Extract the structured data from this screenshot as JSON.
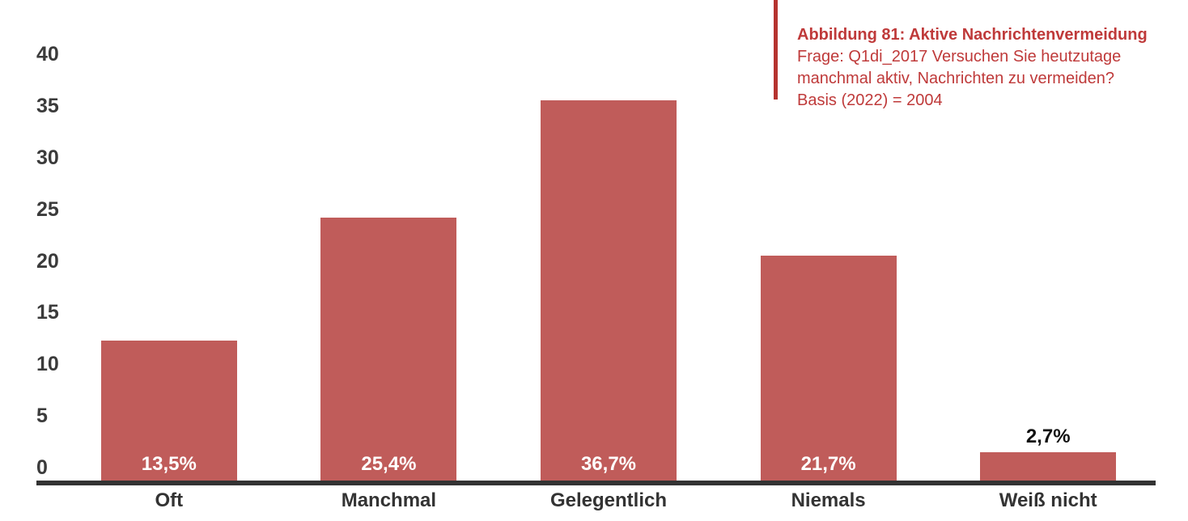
{
  "figure": {
    "title": "Abbildung 81: Aktive Nachrichtenvermeidung",
    "question_lines": [
      "Frage: Q1di_2017 Versuchen Sie heutzutage",
      "manchmal aktiv, Nachrichten zu vermeiden?"
    ],
    "basis": "Basis (2022) = 2004",
    "accent_color": "#b5332f",
    "text_color": "#bf3a3a"
  },
  "chart_data": {
    "type": "bar",
    "title": "Abbildung 81: Aktive Nachrichtenvermeidung",
    "categories": [
      "Oft",
      "Manchmal",
      "Gelegentlich",
      "Niemals",
      "Weiß nicht"
    ],
    "values": [
      13.5,
      25.4,
      36.7,
      21.7,
      2.7
    ],
    "value_labels": [
      "13,5%",
      "25,4%",
      "36,7%",
      "21,7%",
      "2,7%"
    ],
    "xlabel": "",
    "ylabel": "",
    "ylim": [
      0,
      40
    ],
    "yticks": [
      0,
      5,
      10,
      15,
      20,
      25,
      30,
      35,
      40
    ],
    "grid": false,
    "legend": false,
    "bar_color": "#c05c5a",
    "value_label_color_inside": "#ffffff",
    "value_label_color_outside": "#111111",
    "axis_line_color": "#333333",
    "tick_label_color": "#3b3b3b"
  }
}
